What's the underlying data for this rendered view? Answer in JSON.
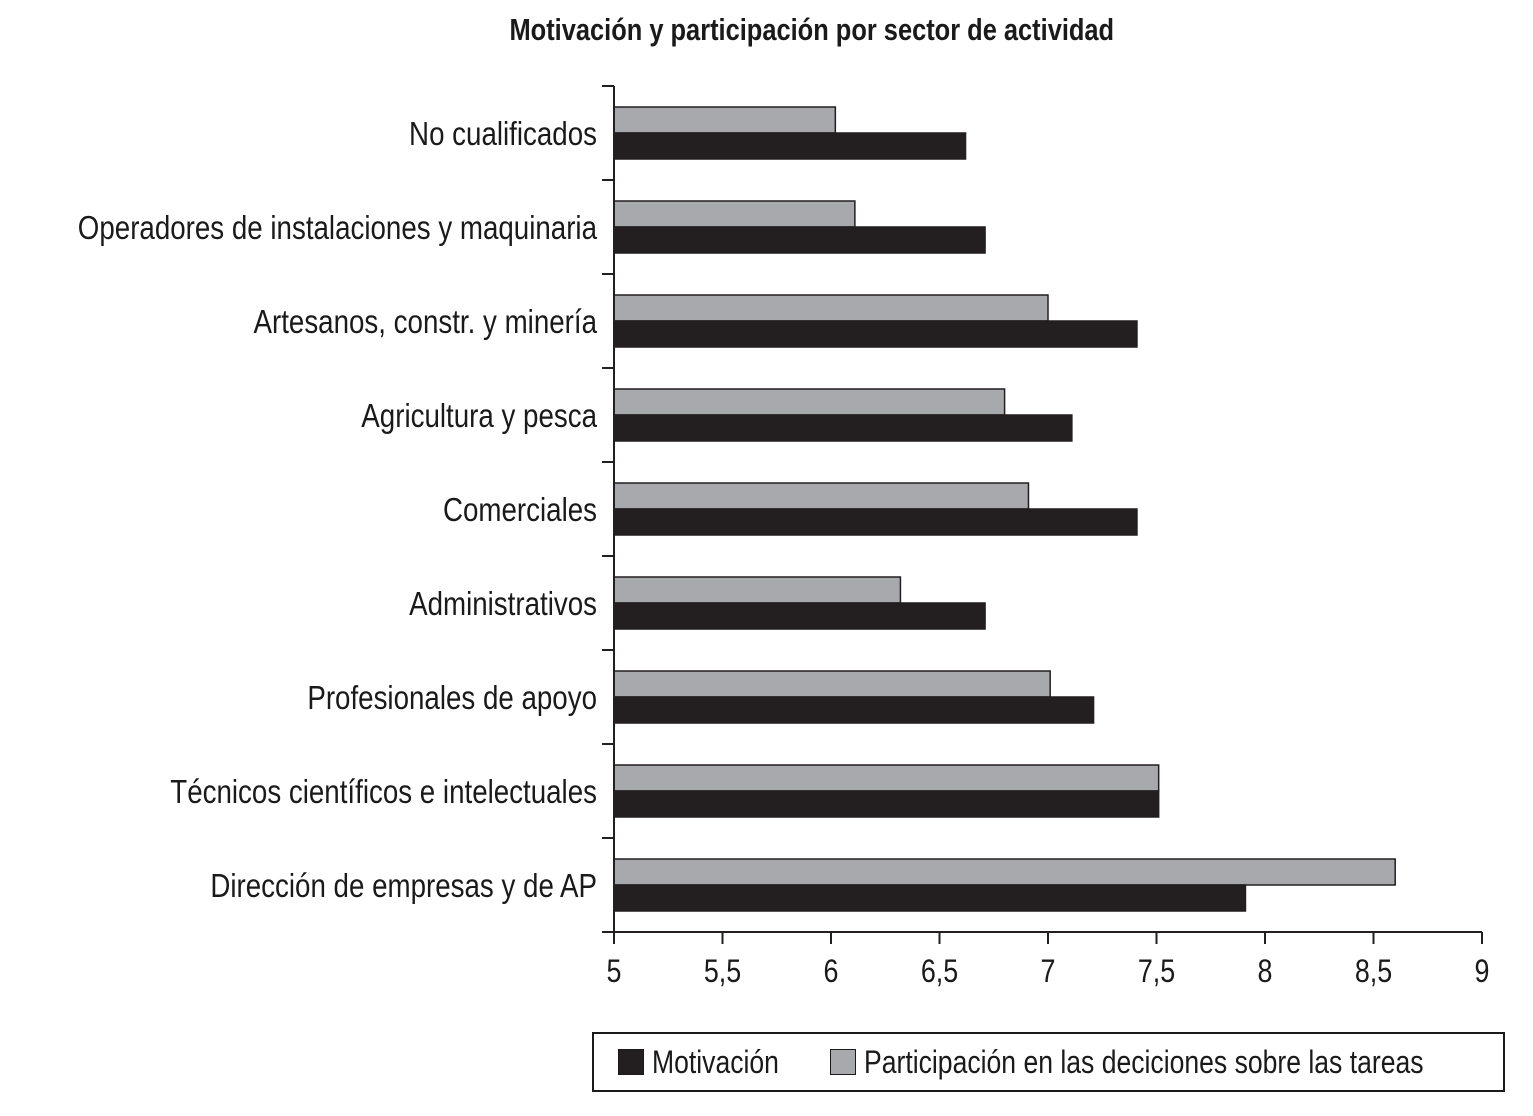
{
  "chart_data": {
    "type": "bar",
    "orientation": "horizontal",
    "title": "Motivación y participación por sector de actividad",
    "xlabel": "",
    "ylabel": "",
    "xlim": [
      5,
      9
    ],
    "xticks": [
      5,
      5.5,
      6,
      6.5,
      7,
      7.5,
      8,
      8.5,
      9
    ],
    "xtick_labels": [
      "5",
      "5,5",
      "6",
      "6,5",
      "7",
      "7,5",
      "8",
      "8,5",
      "9"
    ],
    "grid": false,
    "legend_position": "bottom",
    "categories": [
      "No cualificados",
      "Operadores de instalaciones y maquinaria",
      "Artesanos, constr. y minería",
      "Agricultura y pesca",
      "Comerciales",
      "Administrativos",
      "Profesionales de apoyo",
      "Técnicos científicos e intelectuales",
      "Dirección de empresas y de AP"
    ],
    "series": [
      {
        "name": "Motivación",
        "color": "#231f20",
        "values": [
          6.62,
          6.71,
          7.41,
          7.11,
          7.41,
          6.71,
          7.21,
          7.51,
          7.91
        ]
      },
      {
        "name": "Participación en las deciciones sobre las tareas",
        "color": "#a7a9ac",
        "values": [
          6.02,
          6.11,
          7.0,
          6.8,
          6.91,
          6.32,
          7.01,
          7.51,
          8.6
        ]
      }
    ]
  }
}
